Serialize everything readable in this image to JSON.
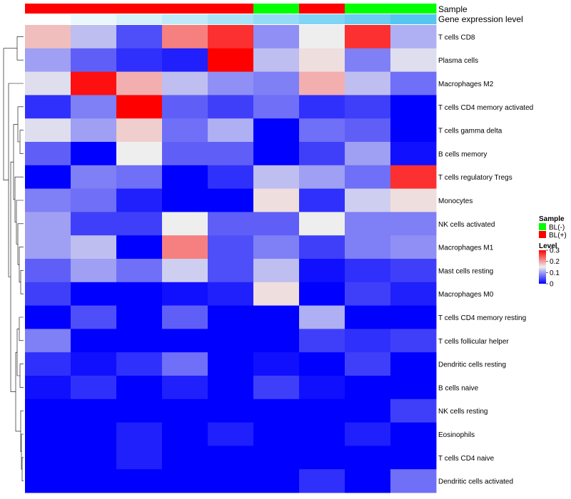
{
  "chart_data": {
    "type": "heatmap",
    "title": "",
    "rows": [
      "T cells CD8",
      "Plasma cells",
      "Macrophages M2",
      "T cells CD4 memory activated",
      "T cells gamma delta",
      "B cells memory",
      "T cells regulatory  Tregs",
      "Monocytes",
      "NK cells activated",
      "Macrophages M1",
      "Mast cells resting",
      "Macrophages M0",
      "T cells CD4 memory resting",
      "T cells follicular helper",
      "Dendritic cells resting",
      "B cells naive",
      "NK cells resting",
      "Eosinophils",
      "T cells CD4 naive",
      "Dendritic cells activated"
    ],
    "column_count": 9,
    "values": [
      [
        0.18,
        0.12,
        0.05,
        0.22,
        0.27,
        0.09,
        0.15,
        0.27,
        0.11
      ],
      [
        0.1,
        0.06,
        0.03,
        0.02,
        0.3,
        0.12,
        0.16,
        0.08,
        0.14
      ],
      [
        0.14,
        0.29,
        0.19,
        0.12,
        0.09,
        0.08,
        0.19,
        0.12,
        0.07
      ],
      [
        0.03,
        0.08,
        0.3,
        0.06,
        0.04,
        0.07,
        0.03,
        0.04,
        0.0
      ],
      [
        0.14,
        0.1,
        0.17,
        0.07,
        0.11,
        0.0,
        0.07,
        0.06,
        0.0
      ],
      [
        0.06,
        0.0,
        0.15,
        0.06,
        0.06,
        0.0,
        0.04,
        0.1,
        0.01
      ],
      [
        0.0,
        0.08,
        0.07,
        0.0,
        0.03,
        0.12,
        0.1,
        0.07,
        0.27
      ],
      [
        0.08,
        0.07,
        0.02,
        0.0,
        0.0,
        0.16,
        0.03,
        0.13,
        0.16
      ],
      [
        0.1,
        0.04,
        0.04,
        0.15,
        0.06,
        0.06,
        0.15,
        0.08,
        0.08
      ],
      [
        0.1,
        0.12,
        0.0,
        0.22,
        0.05,
        0.08,
        0.04,
        0.08,
        0.09
      ],
      [
        0.06,
        0.1,
        0.07,
        0.13,
        0.05,
        0.12,
        0.01,
        0.03,
        0.04
      ],
      [
        0.04,
        0.0,
        0.0,
        0.01,
        0.02,
        0.16,
        0.0,
        0.04,
        0.02
      ],
      [
        0.0,
        0.05,
        0.0,
        0.06,
        0.0,
        0.0,
        0.11,
        0.0,
        0.0
      ],
      [
        0.08,
        0.0,
        0.0,
        0.0,
        0.0,
        0.0,
        0.04,
        0.03,
        0.04
      ],
      [
        0.03,
        0.01,
        0.03,
        0.07,
        0.0,
        0.01,
        0.0,
        0.04,
        0.0
      ],
      [
        0.01,
        0.03,
        0.0,
        0.02,
        0.0,
        0.04,
        0.01,
        0.0,
        0.0
      ],
      [
        0.0,
        0.0,
        0.0,
        0.0,
        0.0,
        0.0,
        0.0,
        0.0,
        0.04
      ],
      [
        0.0,
        0.0,
        0.02,
        0.0,
        0.02,
        0.0,
        0.0,
        0.02,
        0.0
      ],
      [
        0.0,
        0.0,
        0.02,
        0.0,
        0.0,
        0.0,
        0.0,
        0.0,
        0.0
      ],
      [
        0.0,
        0.0,
        0.0,
        0.0,
        0.0,
        0.0,
        0.03,
        0.0,
        0.07
      ]
    ],
    "color_scale": {
      "min": 0,
      "mid": 0.15,
      "max": 0.3,
      "colors": [
        "#0000ff",
        "#eeeeee",
        "#ff0000"
      ]
    },
    "annotations": {
      "sample": {
        "label": "Sample",
        "values": [
          "BL(+)",
          "BL(+)",
          "BL(+)",
          "BL(+)",
          "BL(+)",
          "BL(-)",
          "BL(+)",
          "BL(-)",
          "BL(-)"
        ]
      },
      "gene_expression": {
        "label": "Gene expression level",
        "values": [
          0,
          1,
          2,
          3,
          4,
          5,
          6,
          7,
          8
        ]
      }
    },
    "legend": {
      "sample": {
        "title": "Sample",
        "entries": [
          {
            "label": "BL(-)",
            "color": "#00ff00"
          },
          {
            "label": "BL(+)",
            "color": "#ff0000"
          }
        ]
      },
      "level": {
        "title": "Level",
        "ticks": [
          0.3,
          0.2,
          0.1,
          0
        ]
      },
      "position": "right"
    },
    "dendrogram": "rows"
  }
}
